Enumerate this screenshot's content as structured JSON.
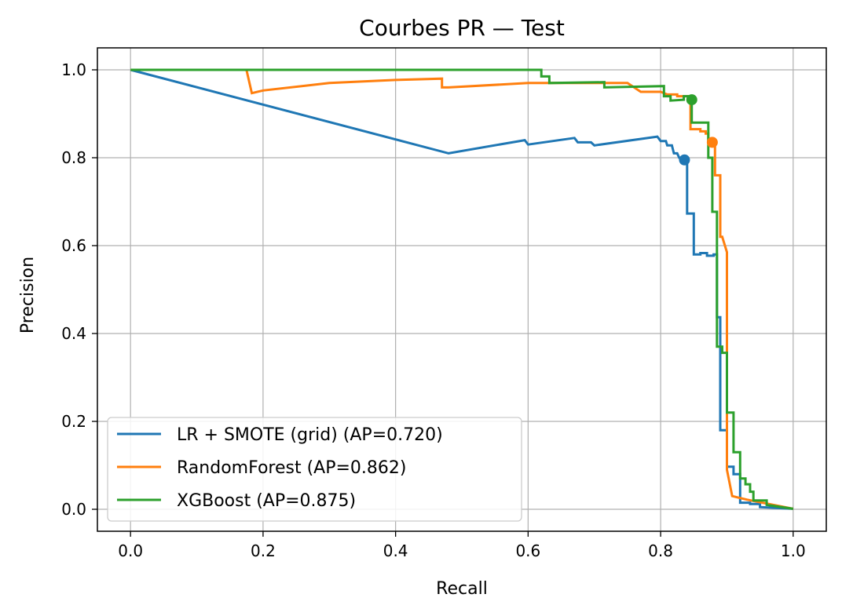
{
  "chart_data": {
    "type": "line",
    "title": "Courbes PR — Test",
    "xlabel": "Recall",
    "ylabel": "Precision",
    "xlim": [
      -0.05,
      1.05
    ],
    "ylim": [
      -0.05,
      1.05
    ],
    "xticks": [
      "0.0",
      "0.2",
      "0.4",
      "0.6",
      "0.8",
      "1.0"
    ],
    "yticks": [
      "0.0",
      "0.2",
      "0.4",
      "0.6",
      "0.8",
      "1.0"
    ],
    "grid": true,
    "legend_position": "lower-left",
    "series": [
      {
        "name": "LR + SMOTE (grid) (AP=0.720)",
        "color": "#1f77b4",
        "operating_point": [
          0.836,
          0.795
        ],
        "points": [
          [
            0.0,
            1.0
          ],
          [
            0.48,
            0.81
          ],
          [
            0.595,
            0.84
          ],
          [
            0.6,
            0.83
          ],
          [
            0.67,
            0.845
          ],
          [
            0.675,
            0.835
          ],
          [
            0.695,
            0.835
          ],
          [
            0.7,
            0.828
          ],
          [
            0.795,
            0.848
          ],
          [
            0.8,
            0.838
          ],
          [
            0.808,
            0.838
          ],
          [
            0.81,
            0.828
          ],
          [
            0.817,
            0.828
          ],
          [
            0.82,
            0.81
          ],
          [
            0.825,
            0.81
          ],
          [
            0.828,
            0.8
          ],
          [
            0.836,
            0.8
          ],
          [
            0.836,
            0.795
          ],
          [
            0.84,
            0.795
          ],
          [
            0.84,
            0.673
          ],
          [
            0.85,
            0.673
          ],
          [
            0.85,
            0.58
          ],
          [
            0.86,
            0.58
          ],
          [
            0.86,
            0.583
          ],
          [
            0.87,
            0.583
          ],
          [
            0.87,
            0.577
          ],
          [
            0.88,
            0.577
          ],
          [
            0.88,
            0.58
          ],
          [
            0.885,
            0.58
          ],
          [
            0.885,
            0.437
          ],
          [
            0.89,
            0.437
          ],
          [
            0.89,
            0.18
          ],
          [
            0.9,
            0.18
          ],
          [
            0.9,
            0.097
          ],
          [
            0.91,
            0.097
          ],
          [
            0.91,
            0.08
          ],
          [
            0.92,
            0.08
          ],
          [
            0.92,
            0.015
          ],
          [
            0.935,
            0.015
          ],
          [
            0.935,
            0.012
          ],
          [
            0.95,
            0.012
          ],
          [
            0.95,
            0.005
          ],
          [
            1.0,
            0.001
          ]
        ]
      },
      {
        "name": "RandomForest (AP=0.862)",
        "color": "#ff7f0e",
        "operating_point": [
          0.878,
          0.835
        ],
        "points": [
          [
            0.0,
            1.0
          ],
          [
            0.175,
            1.0
          ],
          [
            0.183,
            0.947
          ],
          [
            0.2,
            0.953
          ],
          [
            0.3,
            0.97
          ],
          [
            0.4,
            0.977
          ],
          [
            0.47,
            0.98
          ],
          [
            0.47,
            0.96
          ],
          [
            0.48,
            0.96
          ],
          [
            0.6,
            0.97
          ],
          [
            0.75,
            0.97
          ],
          [
            0.77,
            0.95
          ],
          [
            0.8,
            0.95
          ],
          [
            0.81,
            0.944
          ],
          [
            0.825,
            0.944
          ],
          [
            0.825,
            0.94
          ],
          [
            0.845,
            0.94
          ],
          [
            0.845,
            0.865
          ],
          [
            0.86,
            0.865
          ],
          [
            0.86,
            0.86
          ],
          [
            0.868,
            0.86
          ],
          [
            0.868,
            0.855
          ],
          [
            0.872,
            0.855
          ],
          [
            0.872,
            0.835
          ],
          [
            0.878,
            0.835
          ],
          [
            0.882,
            0.835
          ],
          [
            0.882,
            0.76
          ],
          [
            0.89,
            0.76
          ],
          [
            0.89,
            0.62
          ],
          [
            0.893,
            0.62
          ],
          [
            0.9,
            0.585
          ],
          [
            0.9,
            0.09
          ],
          [
            0.908,
            0.03
          ],
          [
            0.93,
            0.022
          ],
          [
            1.0,
            0.001
          ]
        ]
      },
      {
        "name": "XGBoost (AP=0.875)",
        "color": "#2ca02c",
        "operating_point": [
          0.847,
          0.932
        ],
        "points": [
          [
            0.0,
            1.0
          ],
          [
            0.61,
            1.0
          ],
          [
            0.61,
            1.0
          ],
          [
            0.62,
            1.0
          ],
          [
            0.62,
            0.985
          ],
          [
            0.632,
            0.985
          ],
          [
            0.632,
            0.97
          ],
          [
            0.715,
            0.972
          ],
          [
            0.715,
            0.96
          ],
          [
            0.805,
            0.963
          ],
          [
            0.805,
            0.94
          ],
          [
            0.815,
            0.94
          ],
          [
            0.815,
            0.93
          ],
          [
            0.835,
            0.932
          ],
          [
            0.835,
            0.94
          ],
          [
            0.847,
            0.94
          ],
          [
            0.847,
            0.932
          ],
          [
            0.847,
            0.88
          ],
          [
            0.872,
            0.88
          ],
          [
            0.872,
            0.8
          ],
          [
            0.878,
            0.8
          ],
          [
            0.878,
            0.677
          ],
          [
            0.885,
            0.677
          ],
          [
            0.885,
            0.37
          ],
          [
            0.893,
            0.37
          ],
          [
            0.893,
            0.356
          ],
          [
            0.9,
            0.356
          ],
          [
            0.9,
            0.22
          ],
          [
            0.91,
            0.22
          ],
          [
            0.91,
            0.13
          ],
          [
            0.92,
            0.13
          ],
          [
            0.92,
            0.07
          ],
          [
            0.928,
            0.07
          ],
          [
            0.928,
            0.057
          ],
          [
            0.935,
            0.057
          ],
          [
            0.935,
            0.04
          ],
          [
            0.94,
            0.04
          ],
          [
            0.94,
            0.02
          ],
          [
            0.96,
            0.02
          ],
          [
            0.96,
            0.01
          ],
          [
            1.0,
            0.001
          ]
        ]
      }
    ]
  }
}
